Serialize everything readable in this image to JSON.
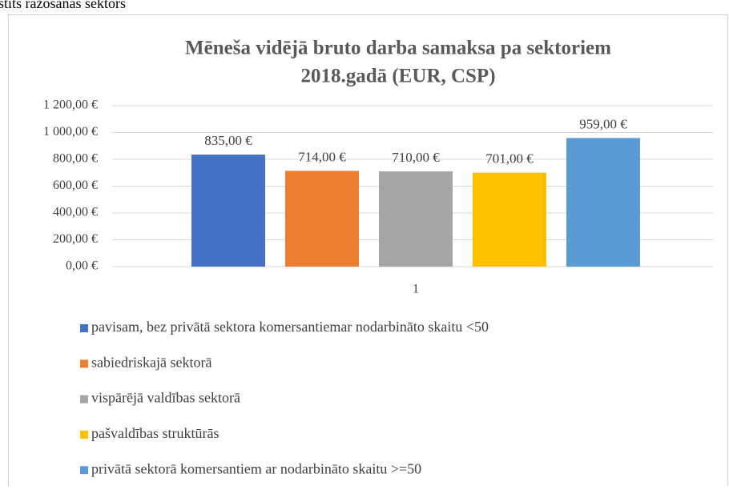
{
  "page_text": "stits ražošanas sektors",
  "chart_data": {
    "type": "bar",
    "title": [
      "Mēneša vidējā bruto darba samaksa pa sektoriem",
      "2018.gadā (EUR, CSP)"
    ],
    "categories": [
      "1"
    ],
    "series": [
      {
        "name": "pavisam, bez privātā sektora komersantiemar nodarbināto skaitu <50",
        "color": "#4472c4",
        "values": [
          835
        ],
        "value_labels": [
          "835,00 €"
        ]
      },
      {
        "name": "sabiedriskajā sektorā",
        "color": "#ed7d31",
        "values": [
          714
        ],
        "value_labels": [
          "714,00 €"
        ]
      },
      {
        "name": "vispārējā valdības sektorā",
        "color": "#a5a5a5",
        "values": [
          710
        ],
        "value_labels": [
          "710,00 €"
        ]
      },
      {
        "name": "pašvaldības struktūrās",
        "color": "#ffc000",
        "values": [
          701
        ],
        "value_labels": [
          "701,00 €"
        ]
      },
      {
        "name": "privātā sektorā komersantiem ar nodarbināto skaitu >=50",
        "color": "#5b9bd5",
        "values": [
          959
        ],
        "value_labels": [
          "959,00 €"
        ]
      }
    ],
    "ylim": [
      0,
      1200
    ],
    "yticks": [
      {
        "value": 0,
        "label": "0,00 €"
      },
      {
        "value": 200,
        "label": "200,00 €"
      },
      {
        "value": 400,
        "label": "400,00 €"
      },
      {
        "value": 600,
        "label": "600,00 €"
      },
      {
        "value": 800,
        "label": "800,00 €"
      },
      {
        "value": 1000,
        "label": "1 000,00 €"
      },
      {
        "value": 1200,
        "label": "1 200,00 €"
      }
    ],
    "grid": true,
    "legend": "bottom"
  }
}
